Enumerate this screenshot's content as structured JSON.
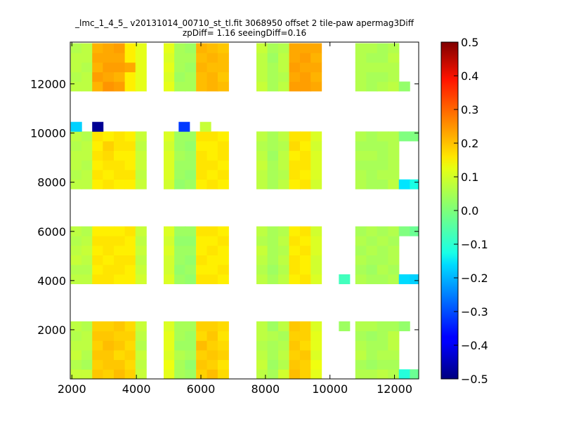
{
  "chart_data": {
    "type": "heatmap",
    "title": "_lmc_1_4_5_ v20131014_00710_st_tl.fit 3068950 offset 2 tile-paw apermag3Diff",
    "subtitle": "zpDiff= 1.16 seeingDiff=0.16",
    "xlabel": "",
    "ylabel": "",
    "xlim": [
      1950,
      12750
    ],
    "ylim": [
      0,
      13700
    ],
    "xticks": [
      2000,
      4000,
      6000,
      8000,
      10000,
      12000
    ],
    "yticks": [
      2000,
      4000,
      6000,
      8000,
      10000,
      12000
    ],
    "colorbar": {
      "min": -0.5,
      "max": 0.5,
      "ticks": [
        "0.5",
        "0.4",
        "0.3",
        "0.2",
        "0.1",
        "0.0",
        "−0.1",
        "−0.2",
        "−0.3",
        "−0.4",
        "−0.5"
      ],
      "colormap": "jet"
    },
    "cell_size": [
      340,
      390
    ],
    "x_columns": [
      2135,
      2470,
      2800,
      3130,
      3470,
      3810,
      4140,
      5015,
      5345,
      5675,
      6020,
      6355,
      6690,
      7890,
      8230,
      8565,
      8905,
      9240,
      9570,
      10955,
      11295,
      11630,
      11970
    ],
    "y_rows": [
      195,
      585,
      975,
      1365,
      1755,
      2145,
      4060,
      4450,
      4840,
      5230,
      5620,
      6010,
      7920,
      8310,
      8700,
      9090,
      9480,
      9870,
      11900,
      12290,
      12680,
      13070,
      13460
    ],
    "grid": [
      [
        0.07,
        0.07,
        0.18,
        0.17,
        0.19,
        0.17,
        0.07,
        0.1,
        0.04,
        0.03,
        0.17,
        0.19,
        0.16,
        0.06,
        0.04,
        0.08,
        0.19,
        0.17,
        0.1,
        0.05,
        0.05,
        0.06,
        0.05
      ],
      [
        0.05,
        0.04,
        0.17,
        0.18,
        0.18,
        0.16,
        0.06,
        0.11,
        0.04,
        0.02,
        0.18,
        0.17,
        0.15,
        0.07,
        0.03,
        0.05,
        0.18,
        0.17,
        0.11,
        0.04,
        0.03,
        0.04,
        0.04
      ],
      [
        0.07,
        0.05,
        0.18,
        0.18,
        0.16,
        0.17,
        0.07,
        0.09,
        0.05,
        0.04,
        0.17,
        0.18,
        0.17,
        0.06,
        0.04,
        0.06,
        0.17,
        0.18,
        0.09,
        0.06,
        0.04,
        0.05,
        0.05
      ],
      [
        0.06,
        0.06,
        0.17,
        0.19,
        0.18,
        0.16,
        0.05,
        0.1,
        0.03,
        0.03,
        0.19,
        0.17,
        0.16,
        0.05,
        0.04,
        0.05,
        0.18,
        0.16,
        0.1,
        0.05,
        0.04,
        0.04,
        0.06
      ],
      [
        0.05,
        0.06,
        0.18,
        0.18,
        0.17,
        0.17,
        0.06,
        0.1,
        0.04,
        0.03,
        0.16,
        0.18,
        0.15,
        0.06,
        0.05,
        0.04,
        0.17,
        0.17,
        0.1,
        0.04,
        0.03,
        0.04,
        0.06
      ],
      [
        0.06,
        0.05,
        0.17,
        0.17,
        0.18,
        0.16,
        0.07,
        0.09,
        0.04,
        0.04,
        0.17,
        0.17,
        0.16,
        0.06,
        0.03,
        0.06,
        0.18,
        0.17,
        0.09,
        0.05,
        0.05,
        0.04,
        0.04
      ],
      [
        0.06,
        0.06,
        0.15,
        0.15,
        0.14,
        0.14,
        0.08,
        0.09,
        0.03,
        0.02,
        0.15,
        0.15,
        0.14,
        0.06,
        0.04,
        0.06,
        0.14,
        0.15,
        0.09,
        0.05,
        0.04,
        0.04,
        0.05
      ],
      [
        0.05,
        0.05,
        0.14,
        0.15,
        0.15,
        0.14,
        0.07,
        0.08,
        0.02,
        0.03,
        0.14,
        0.14,
        0.15,
        0.05,
        0.03,
        0.05,
        0.15,
        0.14,
        0.08,
        0.04,
        0.03,
        0.05,
        0.04
      ],
      [
        0.07,
        0.06,
        0.15,
        0.14,
        0.15,
        0.15,
        0.06,
        0.08,
        0.03,
        0.02,
        0.15,
        0.14,
        0.14,
        0.06,
        0.04,
        0.06,
        0.15,
        0.14,
        0.08,
        0.05,
        0.04,
        0.04,
        0.05
      ],
      [
        0.06,
        0.07,
        0.14,
        0.15,
        0.14,
        0.14,
        0.07,
        0.09,
        0.03,
        0.03,
        0.14,
        0.15,
        0.14,
        0.07,
        0.04,
        0.05,
        0.14,
        0.15,
        0.09,
        0.04,
        0.05,
        0.04,
        0.05
      ],
      [
        0.05,
        0.06,
        0.15,
        0.15,
        0.15,
        0.14,
        0.06,
        0.08,
        0.02,
        0.02,
        0.14,
        0.14,
        0.15,
        0.05,
        0.04,
        0.06,
        0.15,
        0.14,
        0.09,
        0.05,
        0.04,
        0.05,
        0.04
      ],
      [
        0.06,
        0.05,
        0.14,
        0.14,
        0.14,
        0.15,
        0.07,
        0.09,
        0.03,
        0.03,
        0.15,
        0.15,
        0.14,
        0.06,
        0.04,
        0.05,
        0.14,
        0.15,
        0.08,
        0.04,
        0.05,
        0.04,
        0.05
      ],
      [
        0.06,
        0.06,
        0.14,
        0.15,
        0.14,
        0.14,
        0.07,
        0.08,
        0.02,
        0.03,
        0.14,
        0.15,
        0.14,
        0.06,
        0.04,
        0.06,
        0.14,
        0.15,
        0.08,
        0.05,
        0.04,
        0.04,
        0.06
      ],
      [
        0.05,
        0.06,
        0.15,
        0.14,
        0.15,
        0.15,
        0.06,
        0.09,
        0.03,
        0.02,
        0.15,
        0.14,
        0.15,
        0.06,
        0.04,
        0.05,
        0.15,
        0.14,
        0.09,
        0.05,
        0.04,
        0.05,
        0.05
      ],
      [
        0.06,
        0.05,
        0.14,
        0.15,
        0.15,
        0.14,
        0.07,
        0.09,
        0.03,
        0.03,
        0.15,
        0.15,
        0.14,
        0.07,
        0.04,
        0.06,
        0.15,
        0.15,
        0.09,
        0.04,
        0.04,
        0.04,
        0.05
      ],
      [
        0.06,
        0.06,
        0.15,
        0.16,
        0.14,
        0.14,
        0.07,
        0.09,
        0.04,
        0.03,
        0.15,
        0.14,
        0.15,
        0.06,
        0.03,
        0.06,
        0.14,
        0.15,
        0.09,
        0.05,
        0.05,
        0.04,
        0.05
      ],
      [
        0.05,
        0.06,
        0.14,
        0.17,
        0.15,
        0.15,
        0.06,
        0.08,
        0.03,
        0.02,
        0.14,
        0.14,
        0.15,
        0.05,
        0.04,
        0.05,
        0.16,
        0.14,
        0.08,
        0.04,
        0.04,
        0.04,
        0.05
      ],
      [
        0.06,
        0.05,
        0.15,
        0.14,
        0.15,
        0.14,
        0.07,
        0.09,
        0.03,
        0.03,
        0.15,
        0.15,
        0.14,
        0.06,
        0.04,
        0.06,
        0.15,
        0.15,
        0.09,
        0.05,
        0.04,
        0.05,
        0.05
      ],
      [
        0.06,
        0.06,
        0.2,
        0.23,
        0.22,
        0.14,
        0.1,
        0.1,
        0.04,
        0.04,
        0.19,
        0.2,
        0.19,
        0.07,
        0.04,
        0.06,
        0.22,
        0.22,
        0.21,
        0.05,
        0.04,
        0.05,
        0.06
      ],
      [
        0.05,
        0.06,
        0.22,
        0.21,
        0.2,
        0.14,
        0.1,
        0.09,
        0.03,
        0.04,
        0.19,
        0.2,
        0.18,
        0.06,
        0.04,
        0.05,
        0.21,
        0.22,
        0.2,
        0.05,
        0.04,
        0.04,
        0.05
      ],
      [
        0.06,
        0.05,
        0.2,
        0.22,
        0.22,
        0.21,
        0.1,
        0.1,
        0.04,
        0.03,
        0.2,
        0.19,
        0.19,
        0.06,
        0.04,
        0.06,
        0.22,
        0.21,
        0.21,
        0.05,
        0.05,
        0.05,
        0.05
      ],
      [
        0.06,
        0.06,
        0.21,
        0.21,
        0.21,
        0.14,
        0.1,
        0.09,
        0.04,
        0.04,
        0.19,
        0.2,
        0.19,
        0.06,
        0.03,
        0.06,
        0.21,
        0.22,
        0.2,
        0.05,
        0.04,
        0.04,
        0.06
      ],
      [
        0.05,
        0.06,
        0.2,
        0.21,
        0.22,
        0.14,
        0.1,
        0.1,
        0.04,
        0.03,
        0.2,
        0.19,
        0.18,
        0.07,
        0.04,
        0.05,
        0.21,
        0.21,
        0.21,
        0.05,
        0.05,
        0.04,
        0.05
      ]
    ],
    "outliers": [
      {
        "x": 2135,
        "y": 10260,
        "value": -0.17
      },
      {
        "x": 2800,
        "y": 10260,
        "value": -0.48
      },
      {
        "x": 5480,
        "y": 10260,
        "value": -0.32
      },
      {
        "x": 6140,
        "y": 10260,
        "value": 0.07
      },
      {
        "x": 10445,
        "y": 4060,
        "value": -0.06
      },
      {
        "x": 12305,
        "y": 4060,
        "value": -0.16
      },
      {
        "x": 12645,
        "y": 4060,
        "value": -0.17
      },
      {
        "x": 12305,
        "y": 195,
        "value": -0.09
      },
      {
        "x": 12645,
        "y": 195,
        "value": -0.02
      },
      {
        "x": 10445,
        "y": 2145,
        "value": 0.03
      },
      {
        "x": 12305,
        "y": 2145,
        "value": 0.02
      },
      {
        "x": 12305,
        "y": 7920,
        "value": -0.15
      },
      {
        "x": 12645,
        "y": 7920,
        "value": -0.1
      },
      {
        "x": 12305,
        "y": 9870,
        "value": 0.0
      },
      {
        "x": 12645,
        "y": 9870,
        "value": 0.0
      },
      {
        "x": 12305,
        "y": 6010,
        "value": 0.0
      },
      {
        "x": 12645,
        "y": 6010,
        "value": -0.02
      },
      {
        "x": 12305,
        "y": 11900,
        "value": 0.02
      }
    ]
  }
}
